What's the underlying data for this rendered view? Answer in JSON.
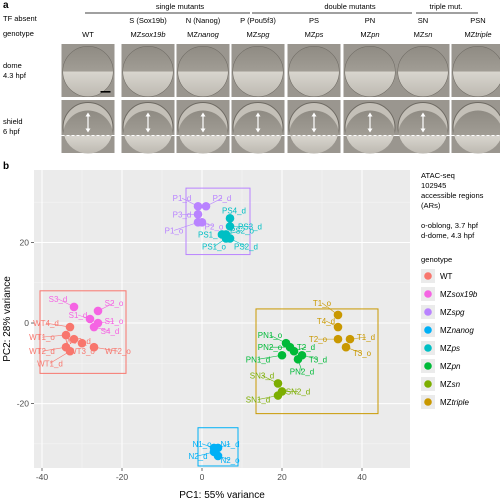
{
  "panel_a": {
    "label": "a",
    "tf_absent_label": "TF absent",
    "genotype_label": "genotype",
    "group_headers": [
      {
        "text": "single mutants"
      },
      {
        "text": "double mutants"
      },
      {
        "text": "triple mut."
      }
    ],
    "columns": [
      {
        "tf": "",
        "prefix": "",
        "geno": "WT",
        "italic": ""
      },
      {
        "tf": "S (Sox19b)",
        "prefix": "MZ",
        "geno": "",
        "italic": "sox19b"
      },
      {
        "tf": "N (Nanog)",
        "prefix": "MZ",
        "geno": "",
        "italic": "nanog"
      },
      {
        "tf": "P (Pou5f3)",
        "prefix": "MZ",
        "geno": "",
        "italic": "spg"
      },
      {
        "tf": "PS",
        "prefix": "MZ",
        "geno": "",
        "italic": "ps"
      },
      {
        "tf": "PN",
        "prefix": "MZ",
        "geno": "",
        "italic": "pn"
      },
      {
        "tf": "SN",
        "prefix": "MZ",
        "geno": "",
        "italic": "sn"
      },
      {
        "tf": "PSN",
        "prefix": "MZ",
        "geno": "",
        "italic": "triple"
      }
    ],
    "rows": [
      {
        "line1": "dome",
        "line2": "4.3 hpf"
      },
      {
        "line1": "shield",
        "line2": "6 hpf"
      }
    ]
  },
  "panel_b": {
    "label": "b",
    "info_lines": [
      "ATAC-seq",
      "102945",
      "accessible regions",
      "(ARs)",
      "",
      "o-oblong, 3.7 hpf",
      "d-dome, 4.3 hpf"
    ],
    "legend_title": "genotype",
    "legend": [
      {
        "prefix": "",
        "text": "WT",
        "italic": "",
        "color": "#F8766D"
      },
      {
        "prefix": "MZ",
        "text": "",
        "italic": "sox19b",
        "color": "#F564E3"
      },
      {
        "prefix": "MZ",
        "text": "",
        "italic": "spg",
        "color": "#B983FF"
      },
      {
        "prefix": "MZ",
        "text": "",
        "italic": "nanog",
        "color": "#00B0F6"
      },
      {
        "prefix": "MZ",
        "text": "",
        "italic": "ps",
        "color": "#00BFC4"
      },
      {
        "prefix": "MZ",
        "text": "",
        "italic": "pn",
        "color": "#00BA38"
      },
      {
        "prefix": "MZ",
        "text": "",
        "italic": "sn",
        "color": "#7CAE00"
      },
      {
        "prefix": "MZ",
        "text": "",
        "italic": "triple",
        "color": "#C99800"
      }
    ]
  },
  "chart_data": {
    "type": "scatter",
    "xlabel": "PC1: 55% variance",
    "ylabel": "PC2: 28% variance",
    "xlim": [
      -42,
      52
    ],
    "ylim": [
      -36,
      38
    ],
    "xticks": [
      -40,
      -20,
      0,
      20,
      40
    ],
    "yticks": [
      -20,
      0,
      20
    ],
    "grid": true,
    "legend_position": "right",
    "series": [
      {
        "name": "WT",
        "color": "#F8766D",
        "points": [
          {
            "label": "WT4_d",
            "x": -33,
            "y": -1
          },
          {
            "label": "WT1_o",
            "x": -34,
            "y": -3
          },
          {
            "label": "WT3_d",
            "x": -32,
            "y": -4
          },
          {
            "label": "WT2_d",
            "x": -34,
            "y": -6
          },
          {
            "label": "WT1_d",
            "x": -33,
            "y": -7
          },
          {
            "label": "WT3_o",
            "x": -30,
            "y": -5
          },
          {
            "label": "WT2_o",
            "x": -27,
            "y": -6
          }
        ]
      },
      {
        "name": "MZsox19b",
        "color": "#F564E3",
        "points": [
          {
            "label": "S3_d",
            "x": -32,
            "y": 4
          },
          {
            "label": "S2_o",
            "x": -26,
            "y": 3
          },
          {
            "label": "S1_d",
            "x": -28,
            "y": 1
          },
          {
            "label": "S1_o",
            "x": -26,
            "y": 0
          },
          {
            "label": "S4_d",
            "x": -27,
            "y": -1
          }
        ]
      },
      {
        "name": "MZspg",
        "color": "#B983FF",
        "points": [
          {
            "label": "P1_d",
            "x": -1,
            "y": 29
          },
          {
            "label": "P2_d",
            "x": 1,
            "y": 29
          },
          {
            "label": "P3_d",
            "x": -1,
            "y": 27
          },
          {
            "label": "P2_o",
            "x": 0,
            "y": 25
          },
          {
            "label": "P1_o",
            "x": -1,
            "y": 25
          }
        ]
      },
      {
        "name": "MZnanog",
        "color": "#00B0F6",
        "points": [
          {
            "label": "N1_o",
            "x": 3,
            "y": -31
          },
          {
            "label": "N1_d",
            "x": 4,
            "y": -31
          },
          {
            "label": "N2_d",
            "x": 3,
            "y": -32
          },
          {
            "label": "N2_o",
            "x": 4,
            "y": -33
          }
        ]
      },
      {
        "name": "MZps",
        "color": "#00BFC4",
        "points": [
          {
            "label": "PS4_d",
            "x": 7,
            "y": 26
          },
          {
            "label": "PS3_d",
            "x": 7,
            "y": 24
          },
          {
            "label": "PS1_d",
            "x": 5,
            "y": 22
          },
          {
            "label": "PS2_o",
            "x": 6,
            "y": 22
          },
          {
            "label": "PS1_o",
            "x": 6,
            "y": 21
          },
          {
            "label": "PS2_d",
            "x": 7,
            "y": 21
          }
        ]
      },
      {
        "name": "MZpn",
        "color": "#00BA38",
        "points": [
          {
            "label": "PN1_o",
            "x": 21,
            "y": -5
          },
          {
            "label": "PN2_o",
            "x": 22,
            "y": -6
          },
          {
            "label": "T2_d",
            "x": 23,
            "y": -7
          },
          {
            "label": "PN1_d",
            "x": 20,
            "y": -8
          },
          {
            "label": "T3_d",
            "x": 25,
            "y": -8
          },
          {
            "label": "PN2_d",
            "x": 24,
            "y": -9
          }
        ]
      },
      {
        "name": "MZsn",
        "color": "#7CAE00",
        "points": [
          {
            "label": "SN3_d",
            "x": 19,
            "y": -15
          },
          {
            "label": "SN2_d",
            "x": 20,
            "y": -17
          },
          {
            "label": "SN1_d",
            "x": 19,
            "y": -18
          }
        ]
      },
      {
        "name": "MZtriple",
        "color": "#C99800",
        "points": [
          {
            "label": "T1_o",
            "x": 34,
            "y": 2
          },
          {
            "label": "T4_d",
            "x": 34,
            "y": -1
          },
          {
            "label": "T2_o",
            "x": 34,
            "y": -4
          },
          {
            "label": "T1_d",
            "x": 37,
            "y": -4
          },
          {
            "label": "T3_o",
            "x": 36,
            "y": -6
          }
        ]
      }
    ]
  }
}
